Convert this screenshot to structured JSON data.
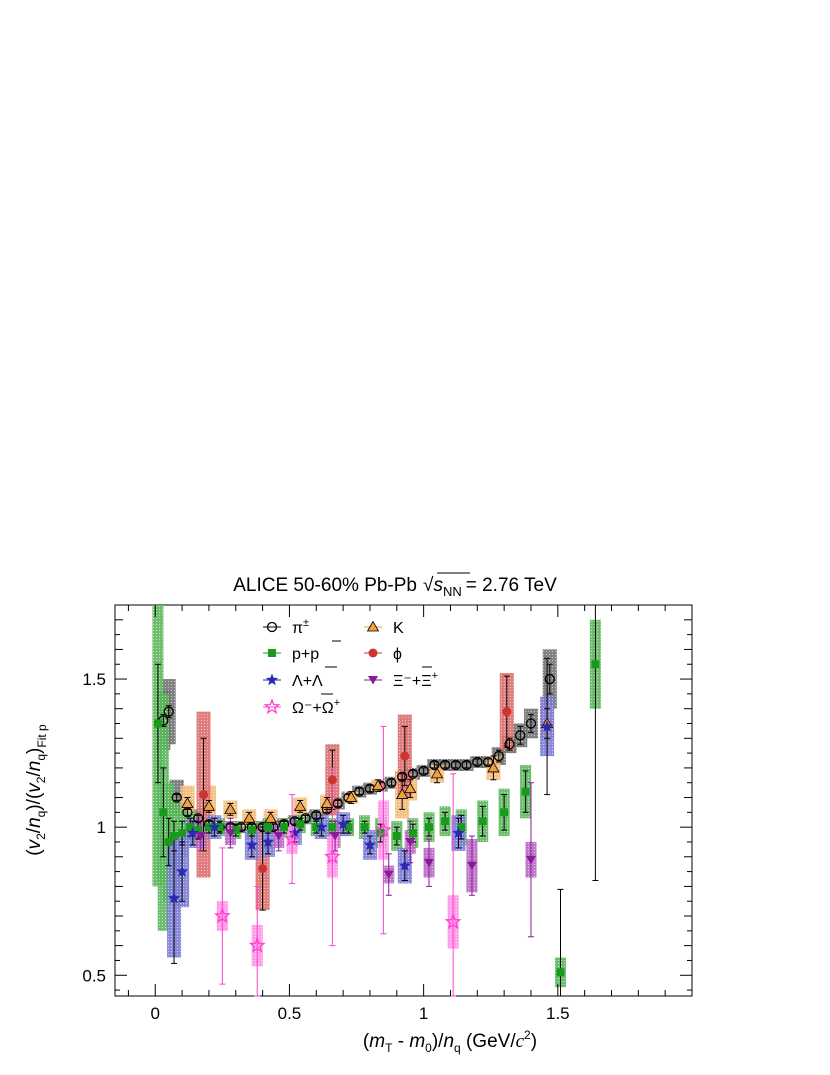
{
  "chart_data": {
    "type": "scatter",
    "title": {
      "prefix": "ALICE 50-60% Pb-Pb",
      "sqrt_s": "s",
      "sqrt_s_sub": "NN",
      "suffix": "= 2.76 TeV"
    },
    "xlabel": {
      "open": "(",
      "m": "m",
      "m_sub": "T",
      "minus": " - ",
      "m0": "m",
      "m0_sub": "0",
      "close": ")/",
      "n": "n",
      "n_sub": "q",
      "unit_open": " (GeV/",
      "c": "c",
      "c_sup": "2",
      "unit_close": ")"
    },
    "ylabel": {
      "p1": "(",
      "v": "v",
      "v_sub": "2",
      "slash": "/",
      "n": "n",
      "n_sub": "q",
      "mid": ")/(",
      "v2": "v",
      "v2_sub": "2",
      "slash2": "/",
      "n2": "n",
      "n2_sub": "q",
      "end": ")",
      "fit_sub": "Fit p"
    },
    "xlim": [
      -0.15,
      2.0
    ],
    "ylim": [
      0.43,
      1.75
    ],
    "x_ticks": [
      {
        "v": 0,
        "label": "0"
      },
      {
        "v": 0.5,
        "label": "0.5"
      },
      {
        "v": 1.0,
        "label": "1"
      },
      {
        "v": 1.5,
        "label": "1.5"
      }
    ],
    "y_ticks": [
      {
        "v": 0.5,
        "label": "0.5"
      },
      {
        "v": 1.0,
        "label": "1"
      },
      {
        "v": 1.5,
        "label": "1.5"
      }
    ],
    "legend_position": "top-center",
    "series": [
      {
        "key": "pi",
        "name": "π±",
        "marker": "open-circle",
        "color": "#000000",
        "sys_color": "#3a3a3a",
        "points": [
          [
            0.03,
            1.36,
            0.02,
            0.1
          ],
          [
            0.05,
            1.39,
            0.02,
            0.11
          ],
          [
            0.08,
            1.1,
            0.01,
            0.06
          ],
          [
            0.12,
            1.05,
            0.01,
            0.04
          ],
          [
            0.16,
            1.03,
            0.01,
            0.03
          ],
          [
            0.2,
            1.01,
            0.01,
            0.03
          ],
          [
            0.24,
            1.0,
            0.01,
            0.02
          ],
          [
            0.28,
            1.0,
            0.01,
            0.02
          ],
          [
            0.32,
            1.0,
            0.01,
            0.02
          ],
          [
            0.36,
            1.0,
            0.01,
            0.02
          ],
          [
            0.4,
            1.0,
            0.01,
            0.02
          ],
          [
            0.44,
            1.0,
            0.01,
            0.02
          ],
          [
            0.48,
            1.01,
            0.01,
            0.02
          ],
          [
            0.52,
            1.02,
            0.01,
            0.02
          ],
          [
            0.56,
            1.03,
            0.01,
            0.02
          ],
          [
            0.6,
            1.04,
            0.01,
            0.02
          ],
          [
            0.64,
            1.06,
            0.01,
            0.02
          ],
          [
            0.68,
            1.08,
            0.01,
            0.02
          ],
          [
            0.72,
            1.1,
            0.01,
            0.02
          ],
          [
            0.76,
            1.12,
            0.01,
            0.02
          ],
          [
            0.8,
            1.13,
            0.01,
            0.02
          ],
          [
            0.84,
            1.14,
            0.01,
            0.02
          ],
          [
            0.88,
            1.15,
            0.01,
            0.02
          ],
          [
            0.92,
            1.17,
            0.01,
            0.02
          ],
          [
            0.96,
            1.18,
            0.01,
            0.02
          ],
          [
            1.0,
            1.19,
            0.01,
            0.02
          ],
          [
            1.04,
            1.21,
            0.01,
            0.02
          ],
          [
            1.08,
            1.21,
            0.01,
            0.02
          ],
          [
            1.12,
            1.21,
            0.01,
            0.02
          ],
          [
            1.16,
            1.21,
            0.01,
            0.02
          ],
          [
            1.2,
            1.22,
            0.01,
            0.02
          ],
          [
            1.24,
            1.22,
            0.01,
            0.02
          ],
          [
            1.28,
            1.24,
            0.02,
            0.03
          ],
          [
            1.32,
            1.28,
            0.02,
            0.03
          ],
          [
            1.36,
            1.31,
            0.03,
            0.04
          ],
          [
            1.4,
            1.35,
            0.03,
            0.05
          ],
          [
            1.47,
            1.5,
            0.05,
            0.1
          ]
        ]
      },
      {
        "key": "k",
        "name": "K",
        "marker": "triangle",
        "color": "#f0a040",
        "sys_color": "#f0a040",
        "points": [
          [
            0.12,
            1.08,
            0.02,
            0.06
          ],
          [
            0.2,
            1.07,
            0.02,
            0.07
          ],
          [
            0.28,
            1.06,
            0.02,
            0.03
          ],
          [
            0.35,
            1.03,
            0.02,
            0.03
          ],
          [
            0.43,
            1.03,
            0.02,
            0.03
          ],
          [
            0.54,
            1.07,
            0.02,
            0.03
          ],
          [
            0.64,
            1.08,
            0.02,
            0.03
          ],
          [
            0.73,
            1.1,
            0.02,
            0.02
          ],
          [
            0.83,
            1.14,
            0.02,
            0.02
          ],
          [
            0.92,
            1.11,
            0.05,
            0.08
          ],
          [
            0.95,
            1.13,
            0.03,
            0.04
          ],
          [
            1.05,
            1.18,
            0.03,
            0.03
          ],
          [
            1.26,
            1.2,
            0.04,
            0.04
          ],
          [
            1.46,
            1.35,
            0.05,
            0.06
          ]
        ]
      },
      {
        "key": "p",
        "name": "p+p̅",
        "marker": "filled-square",
        "color": "#1a9a1a",
        "sys_color": "#1a9a1a",
        "points": [
          [
            0.01,
            1.35,
            0.2,
            0.55
          ],
          [
            0.03,
            1.05,
            0.15,
            0.4
          ],
          [
            0.05,
            0.95,
            0.08,
            0.2
          ],
          [
            0.07,
            0.97,
            0.05,
            0.12
          ],
          [
            0.1,
            0.98,
            0.04,
            0.08
          ],
          [
            0.13,
            1.0,
            0.03,
            0.05
          ],
          [
            0.16,
            0.99,
            0.03,
            0.04
          ],
          [
            0.2,
            1.0,
            0.02,
            0.03
          ],
          [
            0.24,
            1.0,
            0.02,
            0.03
          ],
          [
            0.3,
            0.99,
            0.02,
            0.03
          ],
          [
            0.36,
            0.99,
            0.02,
            0.03
          ],
          [
            0.42,
            1.0,
            0.02,
            0.03
          ],
          [
            0.48,
            1.0,
            0.02,
            0.03
          ],
          [
            0.54,
            1.01,
            0.02,
            0.03
          ],
          [
            0.6,
            1.0,
            0.02,
            0.03
          ],
          [
            0.66,
            1.0,
            0.02,
            0.03
          ],
          [
            0.72,
            1.0,
            0.02,
            0.03
          ],
          [
            0.78,
            1.0,
            0.02,
            0.04
          ],
          [
            0.84,
            0.98,
            0.03,
            0.05
          ],
          [
            0.9,
            0.97,
            0.03,
            0.05
          ],
          [
            0.96,
            0.98,
            0.03,
            0.05
          ],
          [
            1.02,
            1.0,
            0.03,
            0.05
          ],
          [
            1.08,
            1.02,
            0.03,
            0.05
          ],
          [
            1.14,
            1.0,
            0.04,
            0.06
          ],
          [
            1.22,
            1.02,
            0.05,
            0.07
          ],
          [
            1.3,
            1.05,
            0.06,
            0.08
          ],
          [
            1.38,
            1.12,
            0.07,
            0.09
          ],
          [
            1.51,
            0.51,
            0.28,
            0.05
          ],
          [
            1.64,
            1.55,
            0.73,
            0.15
          ]
        ]
      },
      {
        "key": "phi",
        "name": "ϕ",
        "marker": "filled-circle",
        "color": "#cc3333",
        "sys_color": "#cc3333",
        "points": [
          [
            0.18,
            1.11,
            0.19,
            0.28
          ],
          [
            0.4,
            0.86,
            0.14,
            0.14
          ],
          [
            0.66,
            1.16,
            0.1,
            0.12
          ],
          [
            0.93,
            1.24,
            0.1,
            0.14
          ],
          [
            1.31,
            1.39,
            0.12,
            0.13
          ]
        ]
      },
      {
        "key": "lambda",
        "name": "Λ+Λ̅",
        "marker": "filled-star",
        "color": "#2a2ab0",
        "sys_color": "#4848c8",
        "points": [
          [
            0.07,
            0.76,
            0.22,
            0.2
          ],
          [
            0.1,
            0.85,
            0.1,
            0.12
          ],
          [
            0.14,
            0.98,
            0.04,
            0.05
          ],
          [
            0.22,
            1.0,
            0.03,
            0.04
          ],
          [
            0.36,
            0.94,
            0.04,
            0.05
          ],
          [
            0.42,
            0.95,
            0.04,
            0.05
          ],
          [
            0.52,
            0.98,
            0.03,
            0.04
          ],
          [
            0.62,
            1.0,
            0.03,
            0.04
          ],
          [
            0.7,
            1.01,
            0.03,
            0.04
          ],
          [
            0.8,
            0.94,
            0.03,
            0.05
          ],
          [
            0.93,
            0.87,
            0.05,
            0.06
          ],
          [
            1.13,
            0.98,
            0.05,
            0.06
          ],
          [
            1.46,
            1.34,
            0.23,
            0.1
          ]
        ]
      },
      {
        "key": "xi",
        "name": "Ξ⁻+Ξ̅⁺",
        "marker": "filled-triangle-down",
        "color": "#8a1a9a",
        "sys_color": "#9a2aaa",
        "points": [
          [
            0.17,
            0.97,
            0.05,
            0.04
          ],
          [
            0.28,
            0.98,
            0.05,
            0.04
          ],
          [
            0.46,
            0.97,
            0.05,
            0.04
          ],
          [
            0.67,
            0.97,
            0.05,
            0.04
          ],
          [
            0.87,
            0.84,
            0.07,
            0.03
          ],
          [
            0.95,
            0.95,
            0.07,
            0.04
          ],
          [
            1.02,
            0.88,
            0.08,
            0.05
          ],
          [
            1.18,
            0.87,
            0.1,
            0.09
          ],
          [
            1.4,
            0.89,
            0.26,
            0.06
          ]
        ]
      },
      {
        "key": "omega",
        "name": "Ω⁻+Ω̅⁺",
        "marker": "open-star",
        "color": "#ff40d0",
        "sys_color": "#ff66dd",
        "points": [
          [
            0.25,
            0.7,
            0.23,
            0.05
          ],
          [
            0.38,
            0.6,
            0.2,
            0.07
          ],
          [
            0.51,
            0.96,
            0.15,
            0.05
          ],
          [
            0.66,
            0.9,
            0.3,
            0.07
          ],
          [
            0.85,
            0.99,
            0.35,
            0.1
          ],
          [
            1.11,
            0.68,
            0.5,
            0.09
          ]
        ]
      }
    ],
    "legend": [
      {
        "key": "pi",
        "label": "π",
        "sup": "±"
      },
      {
        "key": "k",
        "label": "K",
        "sup": ""
      },
      {
        "key": "p",
        "label": "p+p",
        "sup": "",
        "overline_tail": "p"
      },
      {
        "key": "phi",
        "label": "ϕ",
        "sup": ""
      },
      {
        "key": "lambda",
        "label": "Λ+Λ",
        "sup": ""
      },
      {
        "key": "xi",
        "label": "Ξ⁻+Ξ",
        "sup": "+"
      },
      {
        "key": "omega",
        "label": "Ω⁻+Ω",
        "sup": "+"
      }
    ]
  }
}
